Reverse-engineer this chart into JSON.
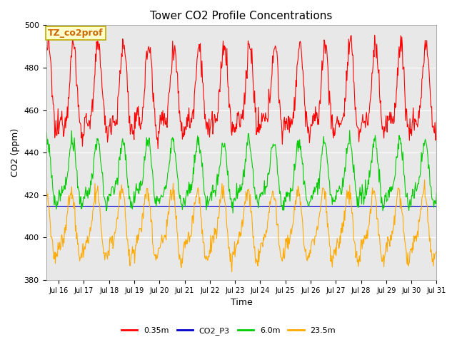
{
  "title": "Tower CO2 Profile Concentrations",
  "xlabel": "Time",
  "ylabel": "CO2 (ppm)",
  "ylim": [
    380,
    500
  ],
  "fig_bg_color": "#ffffff",
  "plot_bg_color": "#e8e8e8",
  "annotation_text": "TZ_co2prof",
  "annotation_bg": "#ffffcc",
  "annotation_edge": "#bbaa00",
  "legend_entries": [
    "0.35m",
    "CO2_P3",
    "6.0m",
    "23.5m"
  ],
  "line_colors": [
    "#ff0000",
    "#0000cc",
    "#00cc00",
    "#ffaa00"
  ],
  "num_points": 720,
  "date_start": 15.5,
  "date_end": 31.0,
  "red_base": 465,
  "red_amp": 18,
  "red_amp2": 8,
  "green_base": 428,
  "green_amp": 13,
  "green_amp2": 5,
  "orange_base": 404,
  "orange_amp": 14,
  "orange_amp2": 5,
  "period": 1.0,
  "yticks": [
    380,
    400,
    420,
    440,
    460,
    480,
    500
  ],
  "xtick_days": [
    16,
    17,
    18,
    19,
    20,
    21,
    22,
    23,
    24,
    25,
    26,
    27,
    28,
    29,
    30,
    31
  ]
}
